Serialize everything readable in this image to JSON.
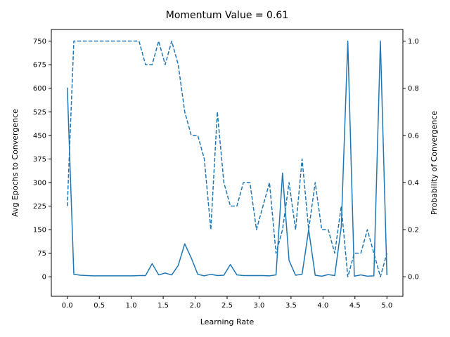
{
  "chart_data": {
    "type": "line",
    "title": "Momentum Value = 0.61",
    "xlabel": "Learning Rate",
    "ylabel_left": "Avg Epochs to Convergence",
    "ylabel_right": "Probability of Convergence",
    "xlim": [
      -0.25,
      5.25
    ],
    "ylim_left": [
      -62,
      787
    ],
    "ylim_right": [
      -0.0827,
      1.0493
    ],
    "x_ticks": [
      0.0,
      0.5,
      1.0,
      1.5,
      2.0,
      2.5,
      3.0,
      3.5,
      4.0,
      4.5,
      5.0
    ],
    "x_tick_labels": [
      "0.0",
      "0.5",
      "1.0",
      "1.5",
      "2.0",
      "2.5",
      "3.0",
      "3.5",
      "4.0",
      "4.5",
      "5.0"
    ],
    "y_left_ticks": [
      0,
      75,
      150,
      225,
      300,
      375,
      450,
      525,
      600,
      675,
      750
    ],
    "y_left_tick_labels": [
      "0",
      "75",
      "150",
      "225",
      "300",
      "375",
      "450",
      "525",
      "600",
      "675",
      "750"
    ],
    "y_right_ticks": [
      0.0,
      0.2,
      0.4,
      0.6,
      0.8,
      1.0
    ],
    "y_right_tick_labels": [
      "0.0",
      "0.2",
      "0.4",
      "0.6",
      "0.8",
      "1.0"
    ],
    "grid": false,
    "color": "#1f77b4",
    "x": [
      0.0,
      0.102,
      0.204,
      0.306,
      0.408,
      0.51,
      0.612,
      0.714,
      0.816,
      0.918,
      1.02,
      1.122,
      1.224,
      1.327,
      1.429,
      1.531,
      1.633,
      1.735,
      1.837,
      1.939,
      2.041,
      2.143,
      2.245,
      2.347,
      2.449,
      2.551,
      2.653,
      2.755,
      2.857,
      2.959,
      3.061,
      3.163,
      3.265,
      3.367,
      3.469,
      3.571,
      3.673,
      3.776,
      3.878,
      3.98,
      4.082,
      4.184,
      4.286,
      4.388,
      4.49,
      4.592,
      4.694,
      4.796,
      4.898,
      5.0
    ],
    "series": [
      {
        "axis": "left",
        "style": "solid",
        "values": [
          602,
          8,
          5,
          4,
          3,
          3,
          3,
          3,
          3,
          3,
          3,
          4,
          4,
          42,
          6,
          12,
          6,
          36,
          105,
          60,
          8,
          3,
          8,
          4,
          5,
          39,
          6,
          4,
          4,
          4,
          4,
          3,
          6,
          330,
          52,
          5,
          8,
          150,
          5,
          2,
          7,
          4,
          160,
          750,
          2,
          6,
          2,
          3,
          750,
          5
        ]
      },
      {
        "axis": "right",
        "style": "dashed",
        "values": [
          0.3,
          1.0,
          1.0,
          1.0,
          1.0,
          1.0,
          1.0,
          1.0,
          1.0,
          1.0,
          1.0,
          1.0,
          0.9,
          0.9,
          1.0,
          0.9,
          1.0,
          0.9,
          0.7,
          0.6,
          0.6,
          0.5,
          0.2,
          0.7,
          0.4,
          0.3,
          0.3,
          0.4,
          0.4,
          0.2,
          0.3,
          0.4,
          0.1,
          0.2,
          0.4,
          0.2,
          0.5,
          0.2,
          0.4,
          0.2,
          0.2,
          0.1,
          0.3,
          0.0,
          0.1,
          0.1,
          0.2,
          0.1,
          0.0,
          0.1
        ]
      }
    ]
  }
}
